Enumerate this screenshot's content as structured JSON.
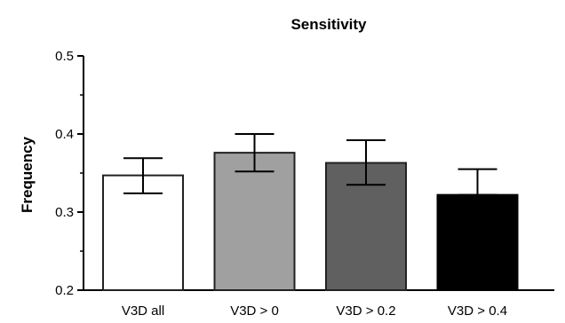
{
  "chart_data": {
    "type": "bar",
    "title": "Sensitivity",
    "xlabel": "",
    "ylabel": "Frequency",
    "ylim": [
      0.2,
      0.5
    ],
    "yticks": [
      "0.2",
      "0.3",
      "0.4",
      "0.5"
    ],
    "minor_ticks": [
      0.25,
      0.35,
      0.45
    ],
    "categories": [
      "V3D all",
      "V3D > 0",
      "V3D > 0.2",
      "V3D > 0.4"
    ],
    "values": [
      0.347,
      0.376,
      0.363,
      0.322
    ],
    "error_upper": [
      0.369,
      0.4,
      0.392,
      0.355
    ],
    "error_lower": [
      0.324,
      0.352,
      0.335,
      0.322
    ],
    "fill_colors": [
      "#ffffff",
      "#a0a0a0",
      "#606060",
      "#000000"
    ],
    "grid": false,
    "legend": "none"
  }
}
